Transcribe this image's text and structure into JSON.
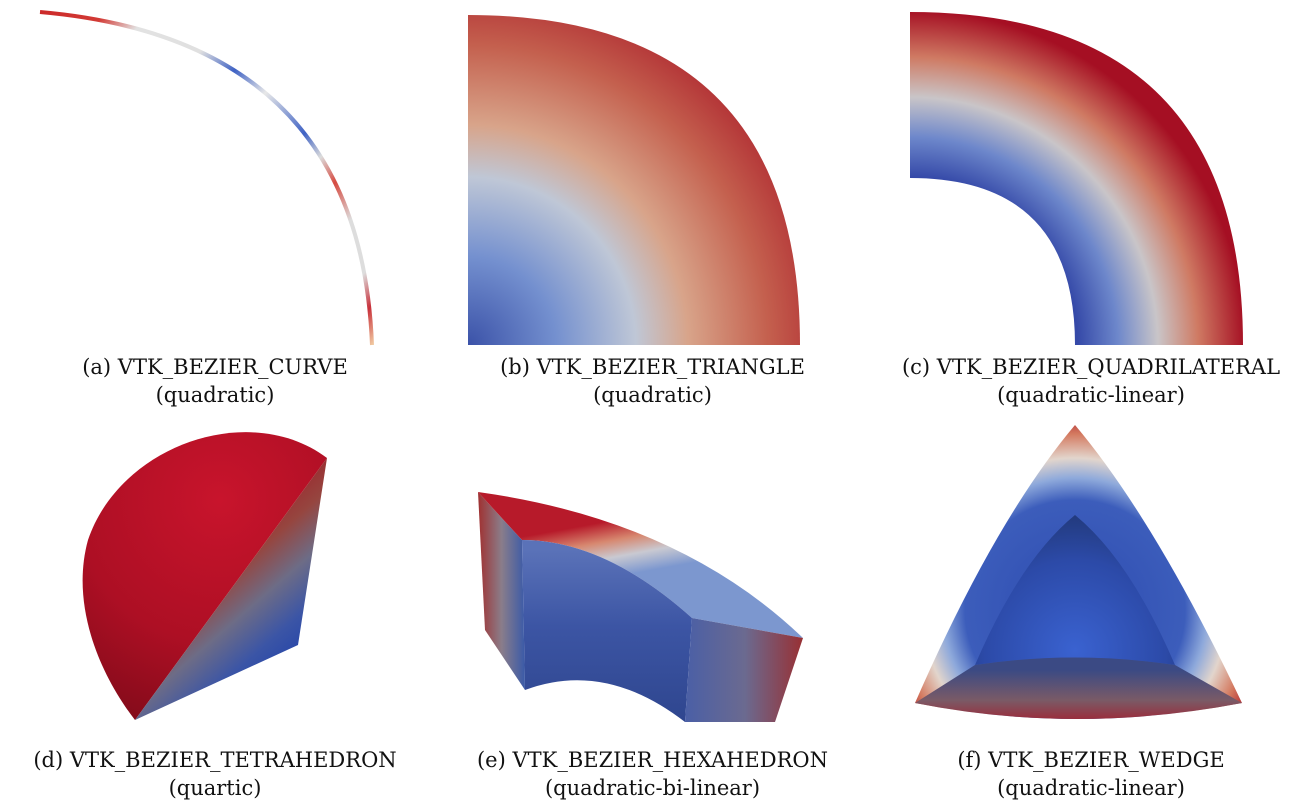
{
  "figure": {
    "panels": [
      {
        "id": "a",
        "caption_line1": "(a) VTK_BEZIER_CURVE",
        "caption_line2": "(quadratic)"
      },
      {
        "id": "b",
        "caption_line1": "(b) VTK_BEZIER_TRIANGLE",
        "caption_line2": "(quadratic)"
      },
      {
        "id": "c",
        "caption_line1": "(c) VTK_BEZIER_QUADRILATERAL",
        "caption_line2": "(quadratic-linear)"
      },
      {
        "id": "d",
        "caption_line1": "(d) VTK_BEZIER_TETRAHEDRON",
        "caption_line2": "(quartic)"
      },
      {
        "id": "e",
        "caption_line1": "(e) VTK_BEZIER_HEXAHEDRON",
        "caption_line2": "(quadratic-bi-linear)"
      },
      {
        "id": "f",
        "caption_line1": "(f) VTK_BEZIER_WEDGE",
        "caption_line2": "(quadratic-linear)"
      }
    ]
  },
  "colormap": {
    "low": "#3b4cc0",
    "mid": "#dddddd",
    "high": "#b40426"
  }
}
